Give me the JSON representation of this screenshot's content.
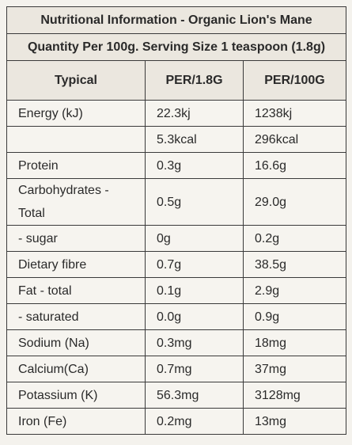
{
  "header": {
    "title": "Nutritional Information - Organic Lion's Mane",
    "subtitle": "Quantity Per 100g. Serving Size 1 teaspoon (1.8g)"
  },
  "table": {
    "columns": [
      "Typical",
      "PER/1.8G",
      "PER/100G"
    ],
    "rows": [
      {
        "label": "Energy (kJ)",
        "per_serving": "22.3kj",
        "per_100g": "1238kj"
      },
      {
        "per_serving": "5.3kcal",
        "per_100g": "296kcal"
      },
      {
        "label": "Protein",
        "per_serving": "0.3g",
        "per_100g": "16.6g"
      },
      {
        "label": "Carbohydrates - Total",
        "per_serving": "0.5g",
        "per_100g": "29.0g"
      },
      {
        "label": "- sugar",
        "per_serving": "0g",
        "per_100g": "0.2g"
      },
      {
        "label": "Dietary fibre",
        "per_serving": "0.7g",
        "per_100g": "38.5g"
      },
      {
        "label": "Fat - total",
        "per_serving": "0.1g",
        "per_100g": "2.9g"
      },
      {
        "label": "- saturated",
        "per_serving": "0.0g",
        "per_100g": "0.9g"
      },
      {
        "label": "Sodium (Na)",
        "per_serving": "0.3mg",
        "per_100g": "18mg"
      },
      {
        "label": "Calcium(Ca)",
        "per_serving": "0.7mg",
        "per_100g": "37mg"
      },
      {
        "label": "Potassium (K)",
        "per_serving": "56.3mg",
        "per_100g": "3128mg"
      },
      {
        "label": "Iron (Fe)",
        "per_serving": "0.2mg",
        "per_100g": "13mg"
      }
    ]
  }
}
